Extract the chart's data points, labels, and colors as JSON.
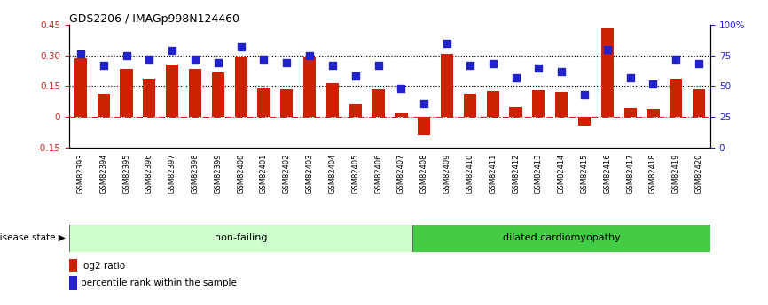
{
  "title": "GDS2206 / IMAGp998N124460",
  "samples": [
    "GSM82393",
    "GSM82394",
    "GSM82395",
    "GSM82396",
    "GSM82397",
    "GSM82398",
    "GSM82399",
    "GSM82400",
    "GSM82401",
    "GSM82402",
    "GSM82403",
    "GSM82404",
    "GSM82405",
    "GSM82406",
    "GSM82407",
    "GSM82408",
    "GSM82409",
    "GSM82410",
    "GSM82411",
    "GSM82412",
    "GSM82413",
    "GSM82414",
    "GSM82415",
    "GSM82416",
    "GSM82417",
    "GSM82418",
    "GSM82419",
    "GSM82420"
  ],
  "log2_ratio": [
    0.285,
    0.115,
    0.235,
    0.185,
    0.255,
    0.235,
    0.215,
    0.295,
    0.14,
    0.135,
    0.295,
    0.165,
    0.06,
    0.135,
    0.02,
    -0.09,
    0.305,
    0.115,
    0.125,
    0.05,
    0.13,
    0.12,
    -0.04,
    0.43,
    0.045,
    0.04,
    0.185,
    0.135
  ],
  "percentile": [
    76,
    67,
    75,
    72,
    79,
    72,
    69,
    82,
    72,
    69,
    75,
    67,
    58,
    67,
    48,
    36,
    85,
    67,
    68,
    57,
    65,
    62,
    43,
    80,
    57,
    52,
    72,
    68
  ],
  "non_failing_count": 15,
  "ylim_left": [
    -0.15,
    0.45
  ],
  "ylim_right": [
    0,
    100
  ],
  "yticks_left": [
    -0.15,
    0.0,
    0.15,
    0.3,
    0.45
  ],
  "ytick_labels_left": [
    "-0.15",
    "0",
    "0.15",
    "0.30",
    "0.45"
  ],
  "yticks_right": [
    0,
    25,
    50,
    75,
    100
  ],
  "ytick_labels_right": [
    "0",
    "25",
    "50",
    "75",
    "100%"
  ],
  "hlines": [
    0.0,
    0.15,
    0.3
  ],
  "hline_styles": [
    "dashdot",
    "dotted",
    "dotted"
  ],
  "hline_colors": [
    "#cc2222",
    "#000000",
    "#000000"
  ],
  "bar_color": "#cc2200",
  "dot_color": "#2222cc",
  "nf_label": "non-failing",
  "dc_label": "dilated cardiomyopathy",
  "disease_label": "disease state",
  "legend_bar": "log2 ratio",
  "legend_dot": "percentile rank within the sample",
  "nf_color": "#ccffcc",
  "dc_color": "#44cc44",
  "dot_size": 30,
  "bar_width": 0.55,
  "left_color": "#cc2222",
  "right_color": "#2222cc"
}
